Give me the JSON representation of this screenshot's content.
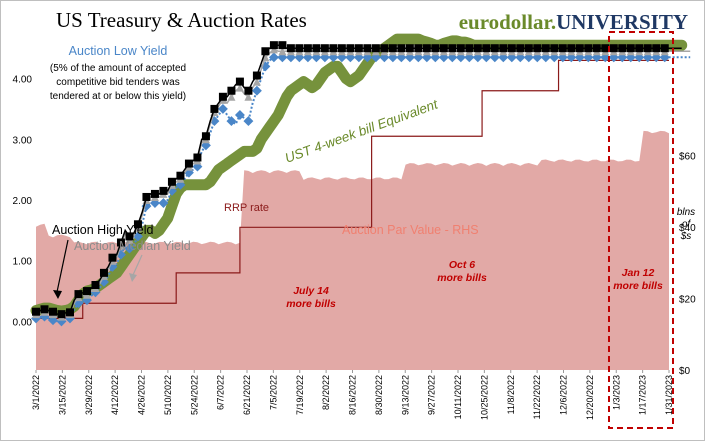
{
  "header": {
    "title": "US Treasury & Auction Rates",
    "brand_prefix": "eurodollar.",
    "brand_suffix": "UNIVERSITY"
  },
  "chart_data": {
    "type": "line",
    "x_tick_labels": [
      "3/1/2022",
      "3/15/2022",
      "3/29/2022",
      "4/12/2022",
      "4/26/2022",
      "5/10/2022",
      "5/24/2022",
      "6/7/2022",
      "6/21/2022",
      "7/5/2022",
      "7/19/2022",
      "8/2/2022",
      "8/16/2022",
      "8/30/2022",
      "9/13/2022",
      "9/27/2022",
      "10/11/2022",
      "10/25/2022",
      "11/8/2022",
      "11/22/2022",
      "12/6/2022",
      "12/20/2022",
      "1/3/2023",
      "1/17/2023",
      "1/31/2023"
    ],
    "y_left": {
      "range": [
        -0.8,
        4.8
      ],
      "ticks": [
        "0.00",
        "1.00",
        "2.00",
        "3.00",
        "4.00"
      ]
    },
    "y_right": {
      "range": [
        0,
        95
      ],
      "ticks": [
        "$0",
        "$20",
        "$40",
        "$60"
      ],
      "unit_label": [
        "blns",
        "of",
        "$s"
      ]
    },
    "series": [
      {
        "name": "Auction Par Value - RHS",
        "type": "area",
        "axis": "right",
        "color": "#e2a9a6",
        "values": [
          40,
          40,
          40,
          37,
          37,
          37,
          37,
          37,
          37,
          35,
          35,
          35,
          35,
          35,
          35,
          35,
          35,
          35,
          35,
          35,
          35,
          35,
          35,
          35,
          35,
          35,
          35,
          35,
          35,
          35,
          35,
          35,
          35,
          35,
          35,
          35,
          35,
          35,
          35,
          35,
          35,
          35,
          35,
          35,
          35,
          35,
          35,
          35,
          35,
          55,
          55,
          55,
          55,
          55,
          55,
          55,
          55,
          55,
          55,
          55,
          55,
          55,
          55,
          53,
          53,
          53,
          53,
          53,
          53,
          53,
          53,
          53,
          53,
          53,
          53,
          53,
          53,
          53,
          53,
          53,
          53,
          53,
          53,
          53,
          53,
          53,
          53,
          57,
          57,
          57,
          57,
          57,
          57,
          57,
          57,
          57,
          57,
          57,
          57,
          57,
          57,
          57,
          57,
          57,
          57,
          57,
          57,
          57,
          57,
          57,
          57,
          57,
          57,
          57,
          57,
          57,
          57,
          57,
          57,
          58,
          58,
          58,
          58,
          58,
          58,
          58,
          58,
          58,
          58,
          58,
          58,
          58,
          58,
          58,
          58,
          58,
          58,
          58,
          58,
          58,
          58,
          58,
          58,
          66,
          66,
          66,
          66,
          66,
          66,
          66,
          66,
          66,
          66
        ]
      },
      {
        "name": "RRP rate",
        "type": "step",
        "axis": "left",
        "color": "#8b1a1a",
        "values": [
          0.05,
          0.05,
          0.05,
          0.05,
          0.05,
          0.05,
          0.05,
          0.05,
          0.05,
          0.05,
          0.05,
          0.3,
          0.3,
          0.3,
          0.3,
          0.3,
          0.3,
          0.3,
          0.3,
          0.3,
          0.3,
          0.3,
          0.3,
          0.3,
          0.3,
          0.3,
          0.3,
          0.3,
          0.3,
          0.3,
          0.3,
          0.3,
          0.3,
          0.8,
          0.8,
          0.8,
          0.8,
          0.8,
          0.8,
          0.8,
          0.8,
          0.8,
          0.8,
          0.8,
          0.8,
          0.8,
          0.8,
          0.8,
          1.55,
          1.55,
          1.55,
          1.55,
          1.55,
          1.55,
          1.55,
          1.55,
          1.55,
          1.55,
          1.55,
          1.55,
          1.55,
          1.55,
          1.55,
          1.55,
          1.55,
          1.55,
          1.55,
          1.55,
          1.55,
          1.55,
          1.55,
          1.55,
          1.55,
          1.55,
          1.55,
          1.55,
          1.55,
          1.55,
          1.55,
          3.05,
          3.05,
          3.05,
          3.05,
          3.05,
          3.05,
          3.05,
          3.05,
          3.05,
          3.05,
          3.05,
          3.05,
          3.05,
          3.05,
          3.05,
          3.05,
          3.05,
          3.05,
          3.05,
          3.05,
          3.05,
          3.05,
          3.05,
          3.05,
          3.05,
          3.05,
          3.8,
          3.8,
          3.8,
          3.8,
          3.8,
          3.8,
          3.8,
          3.8,
          3.8,
          3.8,
          3.8,
          3.8,
          3.8,
          3.8,
          3.8,
          3.8,
          3.8,
          3.8,
          4.3,
          4.3,
          4.3,
          4.3,
          4.3,
          4.3,
          4.3,
          4.3,
          4.3,
          4.3,
          4.3,
          4.3,
          4.3,
          4.3,
          4.3,
          4.3,
          4.3,
          4.3,
          4.3,
          4.3,
          4.3,
          4.3,
          4.3,
          4.3,
          4.3,
          4.3,
          4.3
        ]
      },
      {
        "name": "UST 4-week bill Equivalent",
        "type": "line",
        "axis": "left",
        "color": "#76923c",
        "values": [
          0.18,
          0.2,
          0.22,
          0.22,
          0.2,
          0.18,
          0.17,
          0.18,
          0.2,
          0.25,
          0.35,
          0.45,
          0.5,
          0.52,
          0.55,
          0.6,
          0.65,
          0.7,
          0.75,
          0.8,
          0.9,
          1,
          1.1,
          1.2,
          1.3,
          1.4,
          1.5,
          1.5,
          1.45,
          1.5,
          1.6,
          1.7,
          1.9,
          2.1,
          2.2,
          2.25,
          2.25,
          2.25,
          2.25,
          2.25,
          2.25,
          2.3,
          2.4,
          2.5,
          2.55,
          2.6,
          2.65,
          2.7,
          2.75,
          2.8,
          2.8,
          2.8,
          2.85,
          3,
          3.1,
          3.2,
          3.3,
          3.4,
          3.55,
          3.7,
          3.8,
          3.85,
          3.9,
          3.95,
          3.9,
          3.85,
          3.9,
          4,
          4.1,
          4.15,
          4.2,
          4.2,
          4.1,
          4,
          3.95,
          4,
          4.05,
          4.15,
          4.25,
          4.35,
          4.4,
          4.45,
          4.5,
          4.55,
          4.6,
          4.65,
          4.65,
          4.65,
          4.65,
          4.65,
          4.65,
          4.62,
          4.6,
          4.58,
          4.55,
          4.55,
          4.58,
          4.6,
          4.62,
          4.62,
          4.6,
          4.6,
          4.58,
          4.55,
          4.55,
          4.55,
          4.55,
          4.55,
          4.55,
          4.55,
          4.55,
          4.55,
          4.55,
          4.55,
          4.55,
          4.55,
          4.55,
          4.55,
          4.55,
          4.55,
          4.55,
          4.55,
          4.55,
          4.55,
          4.55,
          4.55,
          4.55,
          4.55,
          4.55,
          4.55,
          4.55,
          4.55,
          4.55,
          4.55,
          4.55,
          4.55,
          4.55,
          4.55,
          4.55,
          4.55,
          4.55,
          4.55,
          4.55,
          4.55,
          4.55,
          4.55,
          4.55,
          4.55,
          4.55,
          4.55,
          4.55,
          4.55,
          4.55
        ]
      },
      {
        "name": "Auction High Yield",
        "type": "line-markers",
        "axis": "left",
        "color": "#000000",
        "values": [
          0.16,
          0.18,
          0.2,
          0.18,
          0.16,
          0.12,
          0.12,
          0.14,
          0.15,
          0.35,
          0.45,
          0.47,
          0.5,
          0.55,
          0.6,
          0.68,
          0.8,
          0.9,
          1.05,
          1.1,
          1.3,
          1.5,
          1.4,
          1.45,
          1.6,
          1.8,
          2.05,
          2.1,
          2.1,
          2.1,
          2.15,
          2.15,
          2.3,
          2.35,
          2.4,
          2.5,
          2.6,
          2.65,
          2.7,
          3,
          3.05,
          3.3,
          3.5,
          3.6,
          3.7,
          3.7,
          3.8,
          3.9,
          3.95,
          3.85,
          3.8,
          3.95,
          4.05,
          4.25,
          4.45,
          4.5,
          4.55,
          4.55,
          4.55,
          4.5,
          4.5,
          4.5,
          4.5,
          4.5,
          4.5,
          4.5,
          4.5,
          4.5,
          4.5,
          4.5,
          4.5,
          4.5,
          4.5,
          4.5,
          4.5,
          4.5,
          4.5,
          4.5,
          4.5,
          4.5,
          4.5,
          4.5,
          4.5,
          4.5,
          4.5,
          4.5,
          4.5,
          4.5,
          4.5,
          4.5,
          4.5,
          4.5,
          4.5,
          4.5,
          4.5,
          4.5,
          4.5,
          4.5,
          4.5,
          4.5,
          4.5,
          4.5,
          4.5,
          4.5,
          4.5,
          4.5,
          4.5,
          4.5,
          4.5,
          4.5,
          4.5,
          4.5,
          4.5,
          4.5,
          4.5,
          4.5,
          4.5,
          4.5,
          4.5,
          4.5,
          4.5,
          4.5,
          4.5,
          4.5,
          4.5,
          4.5,
          4.5,
          4.5,
          4.5,
          4.5,
          4.5,
          4.5,
          4.5,
          4.5,
          4.5,
          4.5,
          4.5,
          4.5,
          4.5,
          4.5,
          4.5,
          4.5,
          4.5,
          4.5,
          4.5,
          4.5,
          4.5,
          4.5,
          4.5,
          4.5,
          4.5,
          4.5,
          4.5
        ]
      },
      {
        "name": "Auction Median Yield",
        "type": "line-markers",
        "axis": "left",
        "color": "#a6a6a6",
        "values": [
          0.12,
          0.14,
          0.16,
          0.14,
          0.12,
          0.08,
          0.08,
          0.1,
          0.12,
          0.3,
          0.4,
          0.42,
          0.44,
          0.5,
          0.55,
          0.62,
          0.75,
          0.85,
          1,
          1.05,
          1.25,
          1.45,
          1.35,
          1.4,
          1.55,
          1.75,
          2,
          2.05,
          2.05,
          2.05,
          2.1,
          2.1,
          2.25,
          2.3,
          2.35,
          2.45,
          2.55,
          2.6,
          2.65,
          2.95,
          3,
          3.25,
          3.45,
          3.55,
          3.65,
          3.6,
          3.7,
          3.8,
          3.85,
          3.75,
          3.7,
          3.85,
          3.95,
          4.15,
          4.35,
          4.42,
          4.48,
          4.45,
          4.45,
          4.45,
          4.45,
          4.45,
          4.45,
          4.45,
          4.45,
          4.45,
          4.45,
          4.45,
          4.45,
          4.45,
          4.45,
          4.45,
          4.45,
          4.45,
          4.45,
          4.45,
          4.45,
          4.45,
          4.45,
          4.45,
          4.45,
          4.45,
          4.45,
          4.45,
          4.45,
          4.45,
          4.45,
          4.45,
          4.45,
          4.45,
          4.45,
          4.45,
          4.45,
          4.45,
          4.45,
          4.45,
          4.45,
          4.45,
          4.45,
          4.45,
          4.45,
          4.45,
          4.45,
          4.45,
          4.45,
          4.45,
          4.45,
          4.45,
          4.45,
          4.45,
          4.45,
          4.45,
          4.45,
          4.45,
          4.45,
          4.45,
          4.45,
          4.45,
          4.45,
          4.45,
          4.45,
          4.45,
          4.45,
          4.45,
          4.45,
          4.45,
          4.45,
          4.45,
          4.45,
          4.45,
          4.45,
          4.45,
          4.45,
          4.45,
          4.45,
          4.45,
          4.45,
          4.45,
          4.45,
          4.45,
          4.45,
          4.45,
          4.45,
          4.45,
          4.45,
          4.45,
          4.45,
          4.45,
          4.45,
          4.45,
          4.45,
          4.45,
          4.45,
          4.45,
          4.45
        ]
      },
      {
        "name": "Auction Low Yield",
        "type": "dotted-markers",
        "axis": "left",
        "color": "#4a86c8",
        "values": [
          0.05,
          0.06,
          0.08,
          0.05,
          0.02,
          0,
          0,
          0.02,
          0.05,
          0.2,
          0.3,
          0.32,
          0.35,
          0.42,
          0.48,
          0.55,
          0.65,
          0.75,
          0.9,
          0.95,
          1.1,
          1.25,
          1.2,
          1.25,
          1.4,
          1.6,
          1.9,
          1.95,
          1.95,
          1.95,
          1.95,
          2,
          2.15,
          2.2,
          2.25,
          2.35,
          2.45,
          2.5,
          2.55,
          2.8,
          2.9,
          3.1,
          3.3,
          3.4,
          3.5,
          3.4,
          3.3,
          3.25,
          3.4,
          3.35,
          3.3,
          3.6,
          3.8,
          4,
          4.2,
          4.3,
          4.35,
          4.35,
          4.35,
          4.35,
          4.35,
          4.35,
          4.35,
          4.35,
          4.35,
          4.35,
          4.35,
          4.35,
          4.35,
          4.35,
          4.35,
          4.35,
          4.35,
          4.35,
          4.35,
          4.35,
          4.35,
          4.35,
          4.35,
          4.35,
          4.35,
          4.35,
          4.35,
          4.35,
          4.35,
          4.35,
          4.35,
          4.35,
          4.35,
          4.35,
          4.35,
          4.35,
          4.35,
          4.35,
          4.35,
          4.35,
          4.35,
          4.35,
          4.35,
          4.35,
          4.35,
          4.35,
          4.35,
          4.35,
          4.35,
          4.35,
          4.35,
          4.35,
          4.35,
          4.35,
          4.35,
          4.35,
          4.35,
          4.35,
          4.35,
          4.35,
          4.35,
          4.35,
          4.35,
          4.35,
          4.35,
          4.35,
          4.35,
          4.35,
          4.35,
          4.35,
          4.35,
          4.35,
          4.35,
          4.35,
          4.35,
          4.35,
          4.35,
          4.35,
          4.35,
          4.35,
          4.35,
          4.35,
          4.35,
          4.35,
          4.35,
          4.35,
          4.35,
          4.35,
          4.35,
          4.35,
          4.35,
          4.35,
          4.35,
          4.35,
          4.35,
          4.35,
          4.35,
          4.35,
          4.35
        ]
      }
    ],
    "annotations": {
      "low_yield_title": "Auction Low Yield",
      "low_yield_note": [
        "(5% of the amount of accepted",
        "competitive bid tenders was",
        "tendered at or below this yield)"
      ],
      "high_yield_label": "Auction High Yield",
      "median_yield_label": "Auction Median Yield",
      "rrp_label": "RRP rate",
      "ust_label": "UST 4-week bill Equivalent",
      "par_value_label": "Auction Par Value - RHS",
      "note_jul14": [
        "July 14",
        "more bills"
      ],
      "note_oct6": [
        "Oct 6",
        "more bills"
      ],
      "note_jan12": [
        "Jan 12",
        "more bills"
      ]
    }
  }
}
